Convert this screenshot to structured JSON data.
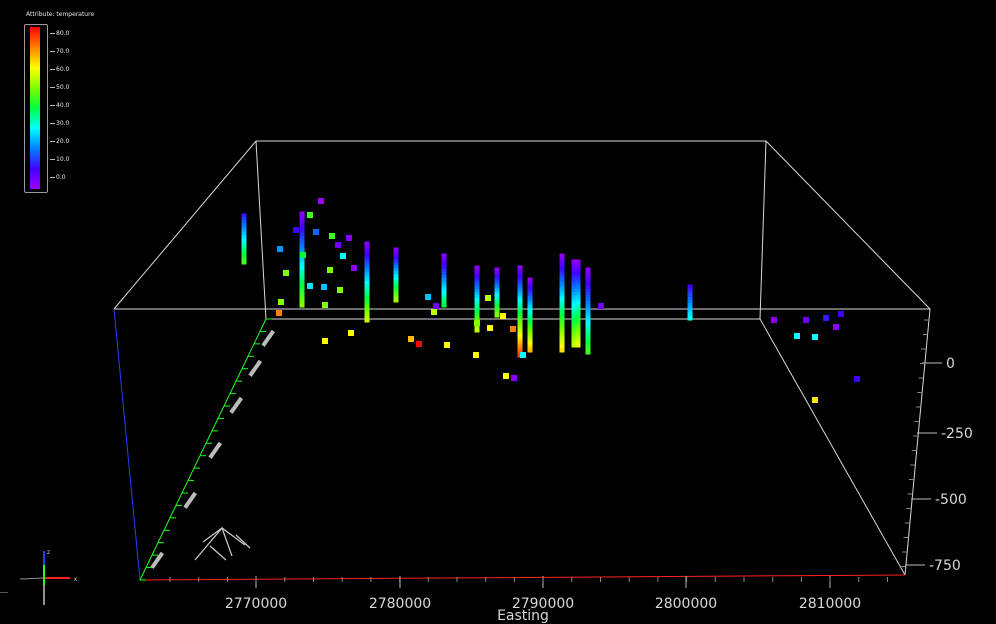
{
  "legend": {
    "title": "Attribute: temperature",
    "ticks": [
      "80.0",
      "70.0",
      "60.0",
      "50.0",
      "40.0",
      "30.0",
      "20.0",
      "10.0",
      "0.0"
    ],
    "colors": [
      "#ff0000",
      "#ff8000",
      "#ffff00",
      "#80ff00",
      "#00ff40",
      "#00ffff",
      "#0080ff",
      "#4000ff",
      "#a000ff"
    ]
  },
  "axes": {
    "x_label": "Easting",
    "x_ticks": [
      "2770000",
      "2780000",
      "2790000",
      "2800000",
      "2810000"
    ],
    "z_ticks": [
      "0",
      "-250",
      "-500",
      "-750"
    ],
    "x_color": "#ff2020",
    "y_color": "#20ff20",
    "z_color": "#2040ff"
  },
  "triad": {
    "z_label": "z",
    "x_label": "x"
  },
  "chart_data": {
    "type": "scatter",
    "title": "",
    "xlabel": "Easting",
    "zlabel": "",
    "attribute": "temperature",
    "colorbar_range": [
      0,
      80
    ],
    "x_ticks": [
      2770000,
      2780000,
      2790000,
      2800000,
      2810000
    ],
    "z_ticks": [
      0,
      -250,
      -500,
      -750
    ]
  }
}
